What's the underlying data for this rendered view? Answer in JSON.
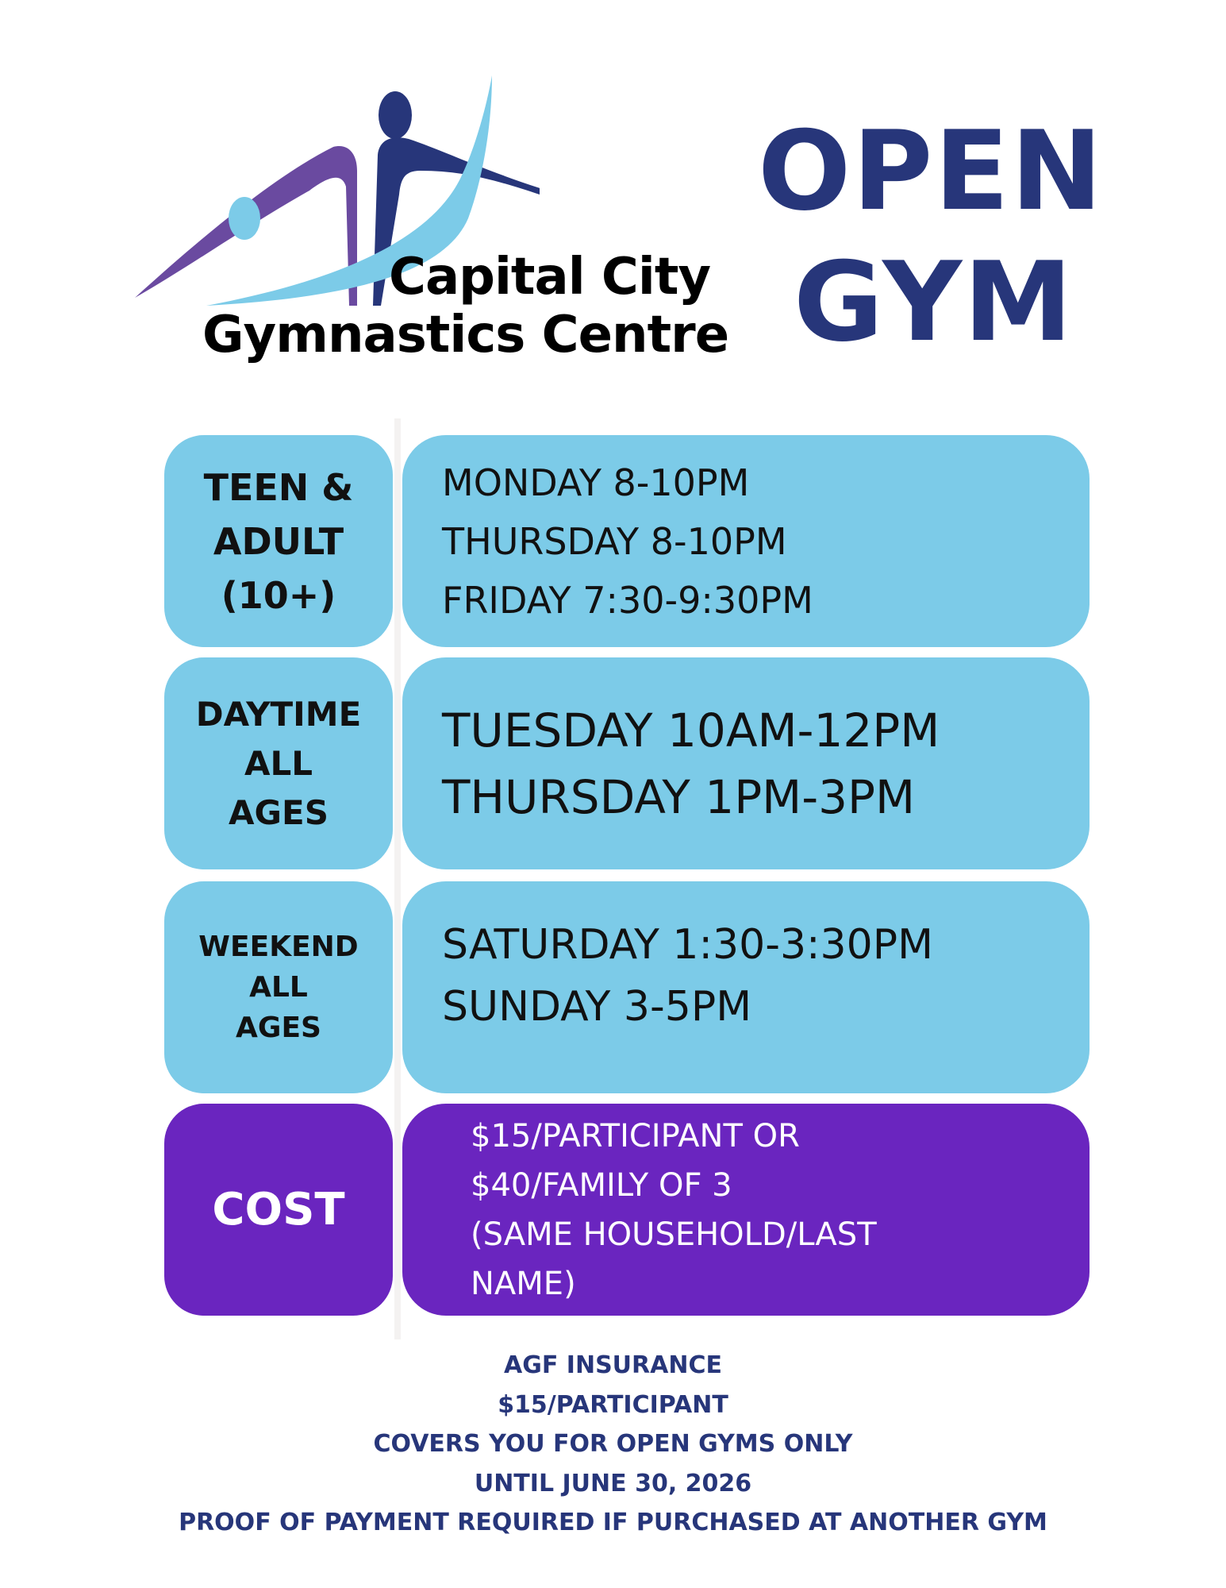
{
  "logo": {
    "line1": "Capital City",
    "line2": "Gymnastics Centre",
    "colors": {
      "purple": "#6a4aa0",
      "navy": "#27367a",
      "lightblue": "#7ccbe8"
    }
  },
  "title": {
    "line1": "OPEN",
    "line2": "GYM"
  },
  "rows": [
    {
      "label": [
        "TEEN &",
        "ADULT",
        "(10+)"
      ],
      "times": [
        "MONDAY 8-10PM",
        "THURSDAY 8-10PM",
        "FRIDAY 7:30-9:30PM"
      ]
    },
    {
      "label": [
        "DAYTIME",
        "ALL",
        "AGES"
      ],
      "times": [
        "TUESDAY 10AM-12PM",
        "THURSDAY 1PM-3PM"
      ]
    },
    {
      "label": [
        "WEEKEND",
        "ALL",
        "AGES"
      ],
      "times": [
        "SATURDAY 1:30-3:30PM",
        "SUNDAY 3-5PM"
      ]
    },
    {
      "label": [
        "COST"
      ],
      "times": [
        "$15/PARTICIPANT OR",
        "$40/FAMILY OF 3",
        "(SAME HOUSEHOLD/LAST",
        "NAME)"
      ]
    }
  ],
  "footer": [
    "AGF INSURANCE",
    "$15/PARTICIPANT",
    "COVERS YOU FOR OPEN GYMS ONLY",
    "UNTIL JUNE 30, 2026",
    "PROOF OF PAYMENT REQUIRED IF PURCHASED AT ANOTHER GYM"
  ],
  "colors": {
    "schedule_bg": "#7ccbe8",
    "cost_bg": "#6a25bf",
    "title": "#27367a"
  }
}
